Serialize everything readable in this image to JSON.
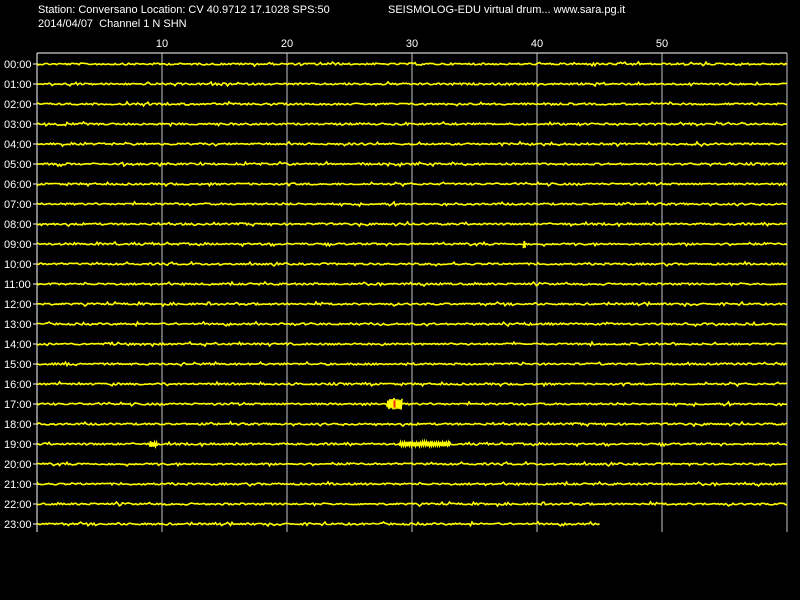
{
  "header": {
    "station_line": "Station: Conversano Location: CV 40.9712 17.1028 SPS:50",
    "date_line": "2014/04/07  Channel 1 N SHN",
    "program_line": "SEISMOLOG-EDU virtual drum... www.sara.pg.it"
  },
  "chart_data": {
    "type": "line",
    "title": "SEISMOLOG-EDU virtual drum... www.sara.pg.it",
    "xlabel": "",
    "ylabel": "",
    "xlim": [
      0,
      60
    ],
    "x_ticks": [
      10,
      20,
      30,
      40,
      50
    ],
    "grid": true,
    "trace_color": "#ffff00",
    "event_color": "#ff2020",
    "background": "#000000",
    "rows": [
      "00:00",
      "01:00",
      "02:00",
      "03:00",
      "04:00",
      "05:00",
      "06:00",
      "07:00",
      "08:00",
      "09:00",
      "10:00",
      "11:00",
      "12:00",
      "13:00",
      "14:00",
      "15:00",
      "16:00",
      "17:00",
      "18:00",
      "19:00",
      "20:00",
      "21:00",
      "22:00",
      "23:00"
    ],
    "last_row_end_minute": 45,
    "events": [
      {
        "row": "17:00",
        "minute": 28.0,
        "duration_min": 1.2,
        "amplitude": 6,
        "color": "#ff2020"
      },
      {
        "row": "19:00",
        "minute": 9.0,
        "duration_min": 0.7,
        "amplitude": 3
      },
      {
        "row": "19:00",
        "minute": 29.0,
        "duration_min": 4.0,
        "amplitude": 2.5
      },
      {
        "row": "09:00",
        "minute": 38.9,
        "duration_min": 0.2,
        "amplitude": 5
      }
    ]
  }
}
